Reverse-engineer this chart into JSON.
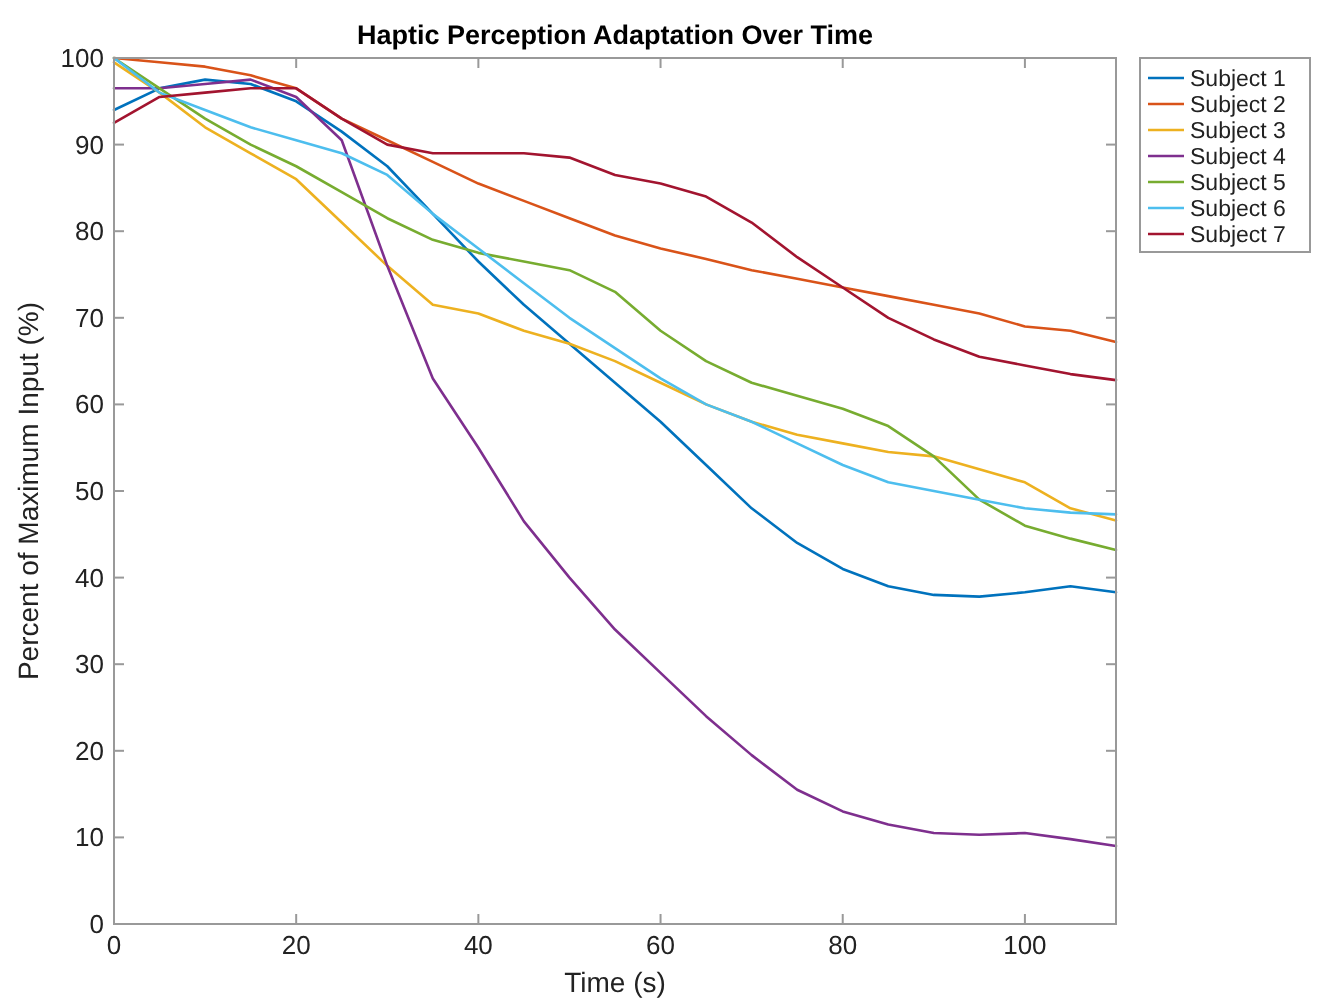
{
  "chart_data": {
    "type": "line",
    "title": "Haptic Perception Adaptation Over Time",
    "xlabel": "Time (s)",
    "ylabel": "Percent of Maximum Input (%)",
    "xlim": [
      0,
      110
    ],
    "ylim": [
      0,
      100
    ],
    "xticks": [
      0,
      20,
      40,
      60,
      80,
      100
    ],
    "yticks": [
      0,
      10,
      20,
      30,
      40,
      50,
      60,
      70,
      80,
      90,
      100
    ],
    "grid": false,
    "legend": "top right",
    "marker": "none",
    "line_style": "solid",
    "x": [
      0,
      5,
      10,
      15,
      20,
      25,
      30,
      35,
      40,
      45,
      50,
      55,
      60,
      65,
      70,
      75,
      80,
      85,
      90,
      95,
      100,
      105,
      110
    ],
    "series": [
      {
        "name": "Subject 1",
        "color": "#0072bd",
        "values": [
          94,
          96.5,
          97.5,
          97,
          95,
          91.5,
          87.5,
          82,
          76.5,
          71.5,
          67,
          62.5,
          58,
          53,
          48,
          44,
          41,
          39,
          38,
          37.8,
          38.3,
          39,
          38.3
        ]
      },
      {
        "name": "Subject 2",
        "color": "#d95319",
        "values": [
          100,
          99.5,
          99,
          98,
          96.5,
          93,
          90.5,
          88,
          85.5,
          83.5,
          81.5,
          79.5,
          78,
          76.8,
          75.5,
          74.5,
          73.5,
          72.5,
          71.5,
          70.5,
          69,
          68.5,
          67.2
        ]
      },
      {
        "name": "Subject 3",
        "color": "#edb120",
        "values": [
          99.5,
          96,
          92,
          89,
          86,
          81,
          76,
          71.5,
          70.5,
          68.5,
          67,
          65,
          62.5,
          60,
          58,
          56.5,
          55.5,
          54.5,
          54,
          52.5,
          51,
          48,
          46.6
        ]
      },
      {
        "name": "Subject 4",
        "color": "#7e2f8e",
        "values": [
          96.5,
          96.5,
          97,
          97.5,
          95.5,
          90.5,
          76,
          63,
          55,
          46.5,
          40,
          34,
          29,
          24,
          19.5,
          15.5,
          13,
          11.5,
          10.5,
          10.3,
          10.5,
          9.8,
          9
        ]
      },
      {
        "name": "Subject 5",
        "color": "#77ac30",
        "values": [
          100,
          96.5,
          93,
          90,
          87.5,
          84.5,
          81.5,
          79,
          77.5,
          76.5,
          75.5,
          73,
          68.5,
          65,
          62.5,
          61,
          59.5,
          57.5,
          54,
          49,
          46,
          44.5,
          43.2
        ]
      },
      {
        "name": "Subject 6",
        "color": "#4dbeee",
        "values": [
          100,
          96,
          94,
          92,
          90.5,
          89,
          86.5,
          82,
          78,
          74,
          70,
          66.5,
          63,
          60,
          58,
          55.5,
          53,
          51,
          50,
          49,
          48,
          47.5,
          47.3
        ]
      },
      {
        "name": "Subject 7",
        "color": "#a2142f",
        "values": [
          92.5,
          95.5,
          96,
          96.5,
          96.5,
          93,
          90,
          89,
          89,
          89,
          88.5,
          86.5,
          85.5,
          84,
          81,
          77,
          73.5,
          70,
          67.5,
          65.5,
          64.5,
          63.5,
          62.8
        ]
      }
    ]
  }
}
